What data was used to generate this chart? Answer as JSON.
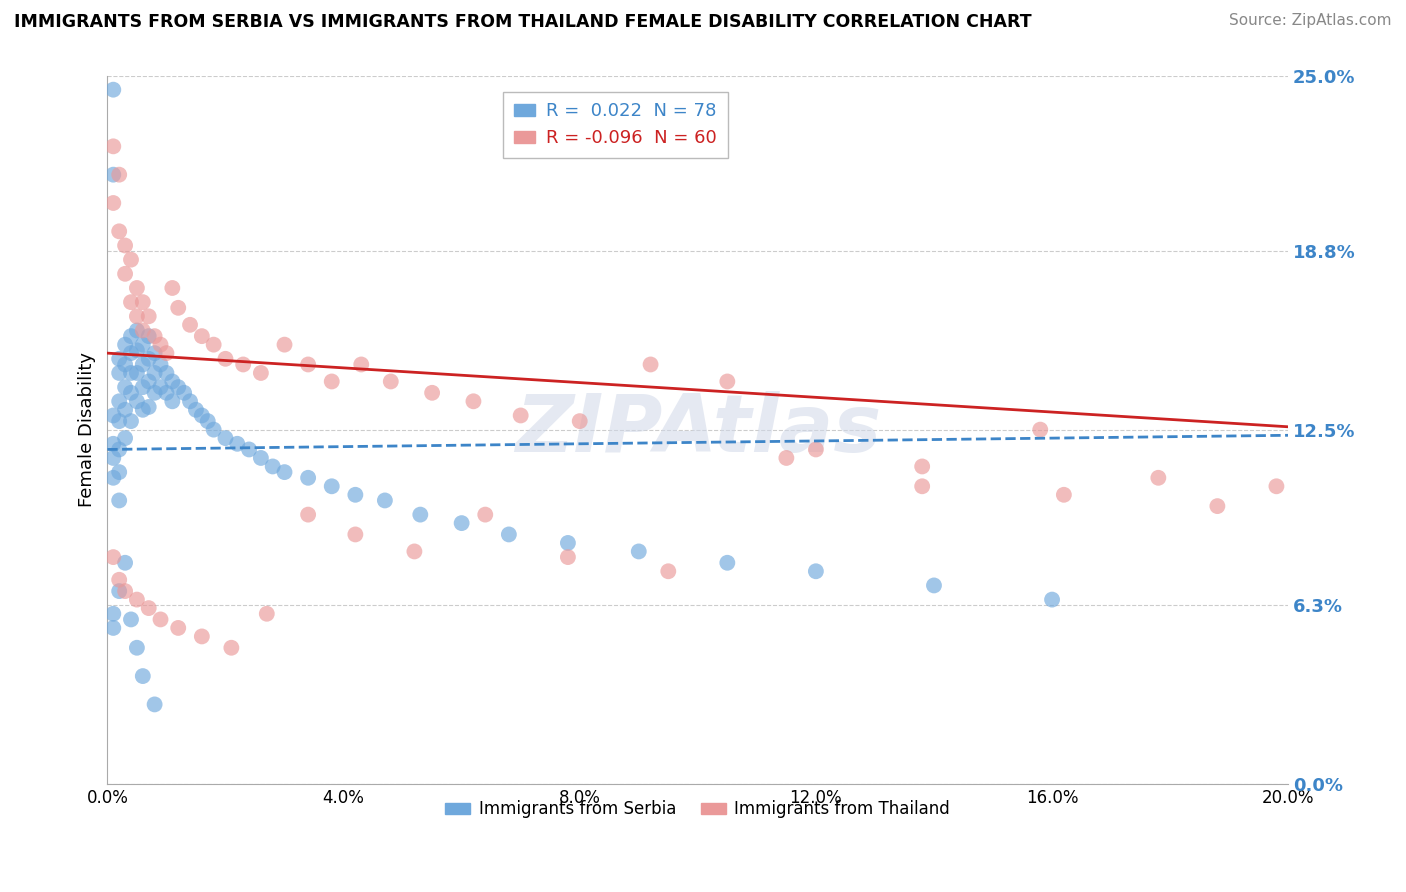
{
  "title": "IMMIGRANTS FROM SERBIA VS IMMIGRANTS FROM THAILAND FEMALE DISABILITY CORRELATION CHART",
  "source": "Source: ZipAtlas.com",
  "ylabel": "Female Disability",
  "xmin": 0.0,
  "xmax": 0.2,
  "ymin": 0.0,
  "ymax": 0.25,
  "ytick_vals": [
    0.0,
    0.063,
    0.125,
    0.188,
    0.25
  ],
  "ytick_labels": [
    "0.0%",
    "6.3%",
    "12.5%",
    "18.8%",
    "25.0%"
  ],
  "xtick_vals": [
    0.0,
    0.04,
    0.08,
    0.12,
    0.16,
    0.2
  ],
  "xtick_labels": [
    "0.0%",
    "4.0%",
    "8.0%",
    "12.0%",
    "16.0%",
    "20.0%"
  ],
  "serbia_color": "#6fa8dc",
  "thailand_color": "#ea9999",
  "serbia_R": 0.022,
  "serbia_N": 78,
  "thailand_R": -0.096,
  "thailand_N": 60,
  "serbia_line_color": "#3d85c8",
  "thailand_line_color": "#cc2222",
  "serbia_line_style": "--",
  "thailand_line_style": "-",
  "watermark": "ZIPAtlas",
  "serbia_line_y0": 0.118,
  "serbia_line_y1": 0.123,
  "thailand_line_y0": 0.152,
  "thailand_line_y1": 0.126,
  "serbia_x": [
    0.001,
    0.001,
    0.001,
    0.001,
    0.001,
    0.001,
    0.002,
    0.002,
    0.002,
    0.002,
    0.002,
    0.002,
    0.002,
    0.003,
    0.003,
    0.003,
    0.003,
    0.003,
    0.004,
    0.004,
    0.004,
    0.004,
    0.004,
    0.005,
    0.005,
    0.005,
    0.005,
    0.006,
    0.006,
    0.006,
    0.006,
    0.007,
    0.007,
    0.007,
    0.007,
    0.008,
    0.008,
    0.008,
    0.009,
    0.009,
    0.01,
    0.01,
    0.011,
    0.011,
    0.012,
    0.013,
    0.014,
    0.015,
    0.016,
    0.017,
    0.018,
    0.02,
    0.022,
    0.024,
    0.026,
    0.028,
    0.03,
    0.034,
    0.038,
    0.042,
    0.047,
    0.053,
    0.06,
    0.068,
    0.078,
    0.09,
    0.105,
    0.12,
    0.14,
    0.16,
    0.001,
    0.001,
    0.002,
    0.003,
    0.004,
    0.005,
    0.006,
    0.008
  ],
  "serbia_y": [
    0.245,
    0.215,
    0.13,
    0.12,
    0.115,
    0.108,
    0.15,
    0.145,
    0.135,
    0.128,
    0.118,
    0.11,
    0.1,
    0.155,
    0.148,
    0.14,
    0.132,
    0.122,
    0.158,
    0.152,
    0.145,
    0.138,
    0.128,
    0.16,
    0.153,
    0.145,
    0.135,
    0.155,
    0.148,
    0.14,
    0.132,
    0.158,
    0.15,
    0.142,
    0.133,
    0.152,
    0.145,
    0.138,
    0.148,
    0.14,
    0.145,
    0.138,
    0.142,
    0.135,
    0.14,
    0.138,
    0.135,
    0.132,
    0.13,
    0.128,
    0.125,
    0.122,
    0.12,
    0.118,
    0.115,
    0.112,
    0.11,
    0.108,
    0.105,
    0.102,
    0.1,
    0.095,
    0.092,
    0.088,
    0.085,
    0.082,
    0.078,
    0.075,
    0.07,
    0.065,
    0.06,
    0.055,
    0.068,
    0.078,
    0.058,
    0.048,
    0.038,
    0.028
  ],
  "thailand_x": [
    0.001,
    0.001,
    0.002,
    0.002,
    0.003,
    0.003,
    0.004,
    0.004,
    0.005,
    0.005,
    0.006,
    0.006,
    0.007,
    0.008,
    0.009,
    0.01,
    0.011,
    0.012,
    0.014,
    0.016,
    0.018,
    0.02,
    0.023,
    0.026,
    0.03,
    0.034,
    0.038,
    0.043,
    0.048,
    0.055,
    0.062,
    0.07,
    0.08,
    0.092,
    0.105,
    0.12,
    0.138,
    0.158,
    0.178,
    0.198,
    0.001,
    0.002,
    0.003,
    0.005,
    0.007,
    0.009,
    0.012,
    0.016,
    0.021,
    0.027,
    0.034,
    0.042,
    0.052,
    0.064,
    0.078,
    0.095,
    0.115,
    0.138,
    0.162,
    0.188
  ],
  "thailand_y": [
    0.205,
    0.225,
    0.195,
    0.215,
    0.19,
    0.18,
    0.185,
    0.17,
    0.175,
    0.165,
    0.17,
    0.16,
    0.165,
    0.158,
    0.155,
    0.152,
    0.175,
    0.168,
    0.162,
    0.158,
    0.155,
    0.15,
    0.148,
    0.145,
    0.155,
    0.148,
    0.142,
    0.148,
    0.142,
    0.138,
    0.135,
    0.13,
    0.128,
    0.148,
    0.142,
    0.118,
    0.112,
    0.125,
    0.108,
    0.105,
    0.08,
    0.072,
    0.068,
    0.065,
    0.062,
    0.058,
    0.055,
    0.052,
    0.048,
    0.06,
    0.095,
    0.088,
    0.082,
    0.095,
    0.08,
    0.075,
    0.115,
    0.105,
    0.102,
    0.098
  ]
}
